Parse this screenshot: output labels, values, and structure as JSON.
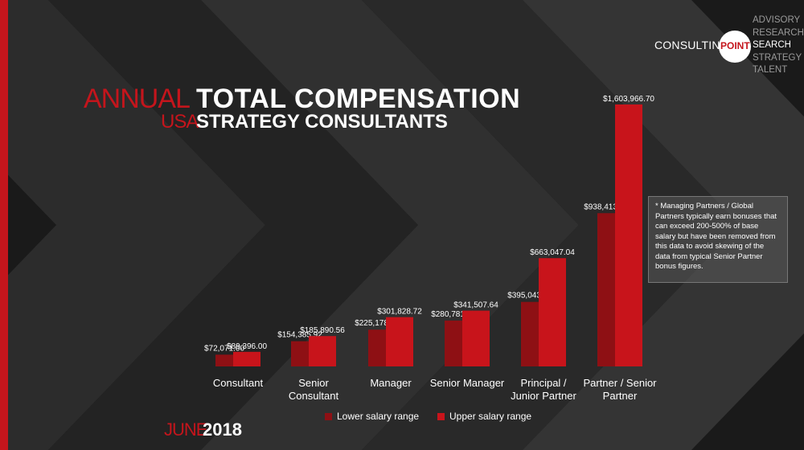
{
  "logo": {
    "brand": "CONSULTING",
    "mark": "POINT",
    "services": [
      "ADVISORY",
      "RESEARCH",
      "SEARCH",
      "STRATEGY",
      "TALENT"
    ],
    "active_service": "SEARCH"
  },
  "title": {
    "accent": "ANNUAL",
    "main": "TOTAL COMPENSATION",
    "sub_accent": "USA",
    "sub_main": "STRATEGY CONSULTANTS"
  },
  "note": "* Managing Partners / Global Partners typically earn  bonuses that can exceed 200-500% of base salary but have been removed from this data to avoid skewing of the data from typical Senior Partner bonus figures.",
  "date": {
    "month": "JUNE",
    "year": "2018"
  },
  "colors": {
    "lower": "#8e1014",
    "upper": "#c8141b",
    "accent": "#c4151c"
  },
  "chart_data": {
    "type": "bar",
    "categories": [
      [
        "Consultant"
      ],
      [
        "Senior",
        "Consultant"
      ],
      [
        "Manager"
      ],
      [
        "Senior Manager"
      ],
      [
        "Principal /",
        "Junior Partner"
      ],
      [
        "Partner / Senior",
        "Partner"
      ]
    ],
    "series": [
      {
        "name": "Lower salary range",
        "values": [
          72071.0,
          154385.92,
          225178.72,
          280781.76,
          395043.84,
          938413.42
        ],
        "labels": [
          "$72,071.00",
          "$154,385.92",
          "$225,178.72",
          "$280,781.76",
          "$395,043.84",
          "$938,413.42"
        ]
      },
      {
        "name": "Upper salary range",
        "values": [
          89396.0,
          185890.56,
          301828.72,
          341507.64,
          663047.04,
          1603966.7
        ],
        "labels": [
          "$89,396.00",
          "$185,890.56",
          "$301,828.72",
          "$341,507.64",
          "$663,047.04",
          "$1,603,966.70"
        ]
      }
    ],
    "ylim": [
      0,
      1603966.7
    ],
    "grid": false,
    "legend": "bottom"
  }
}
